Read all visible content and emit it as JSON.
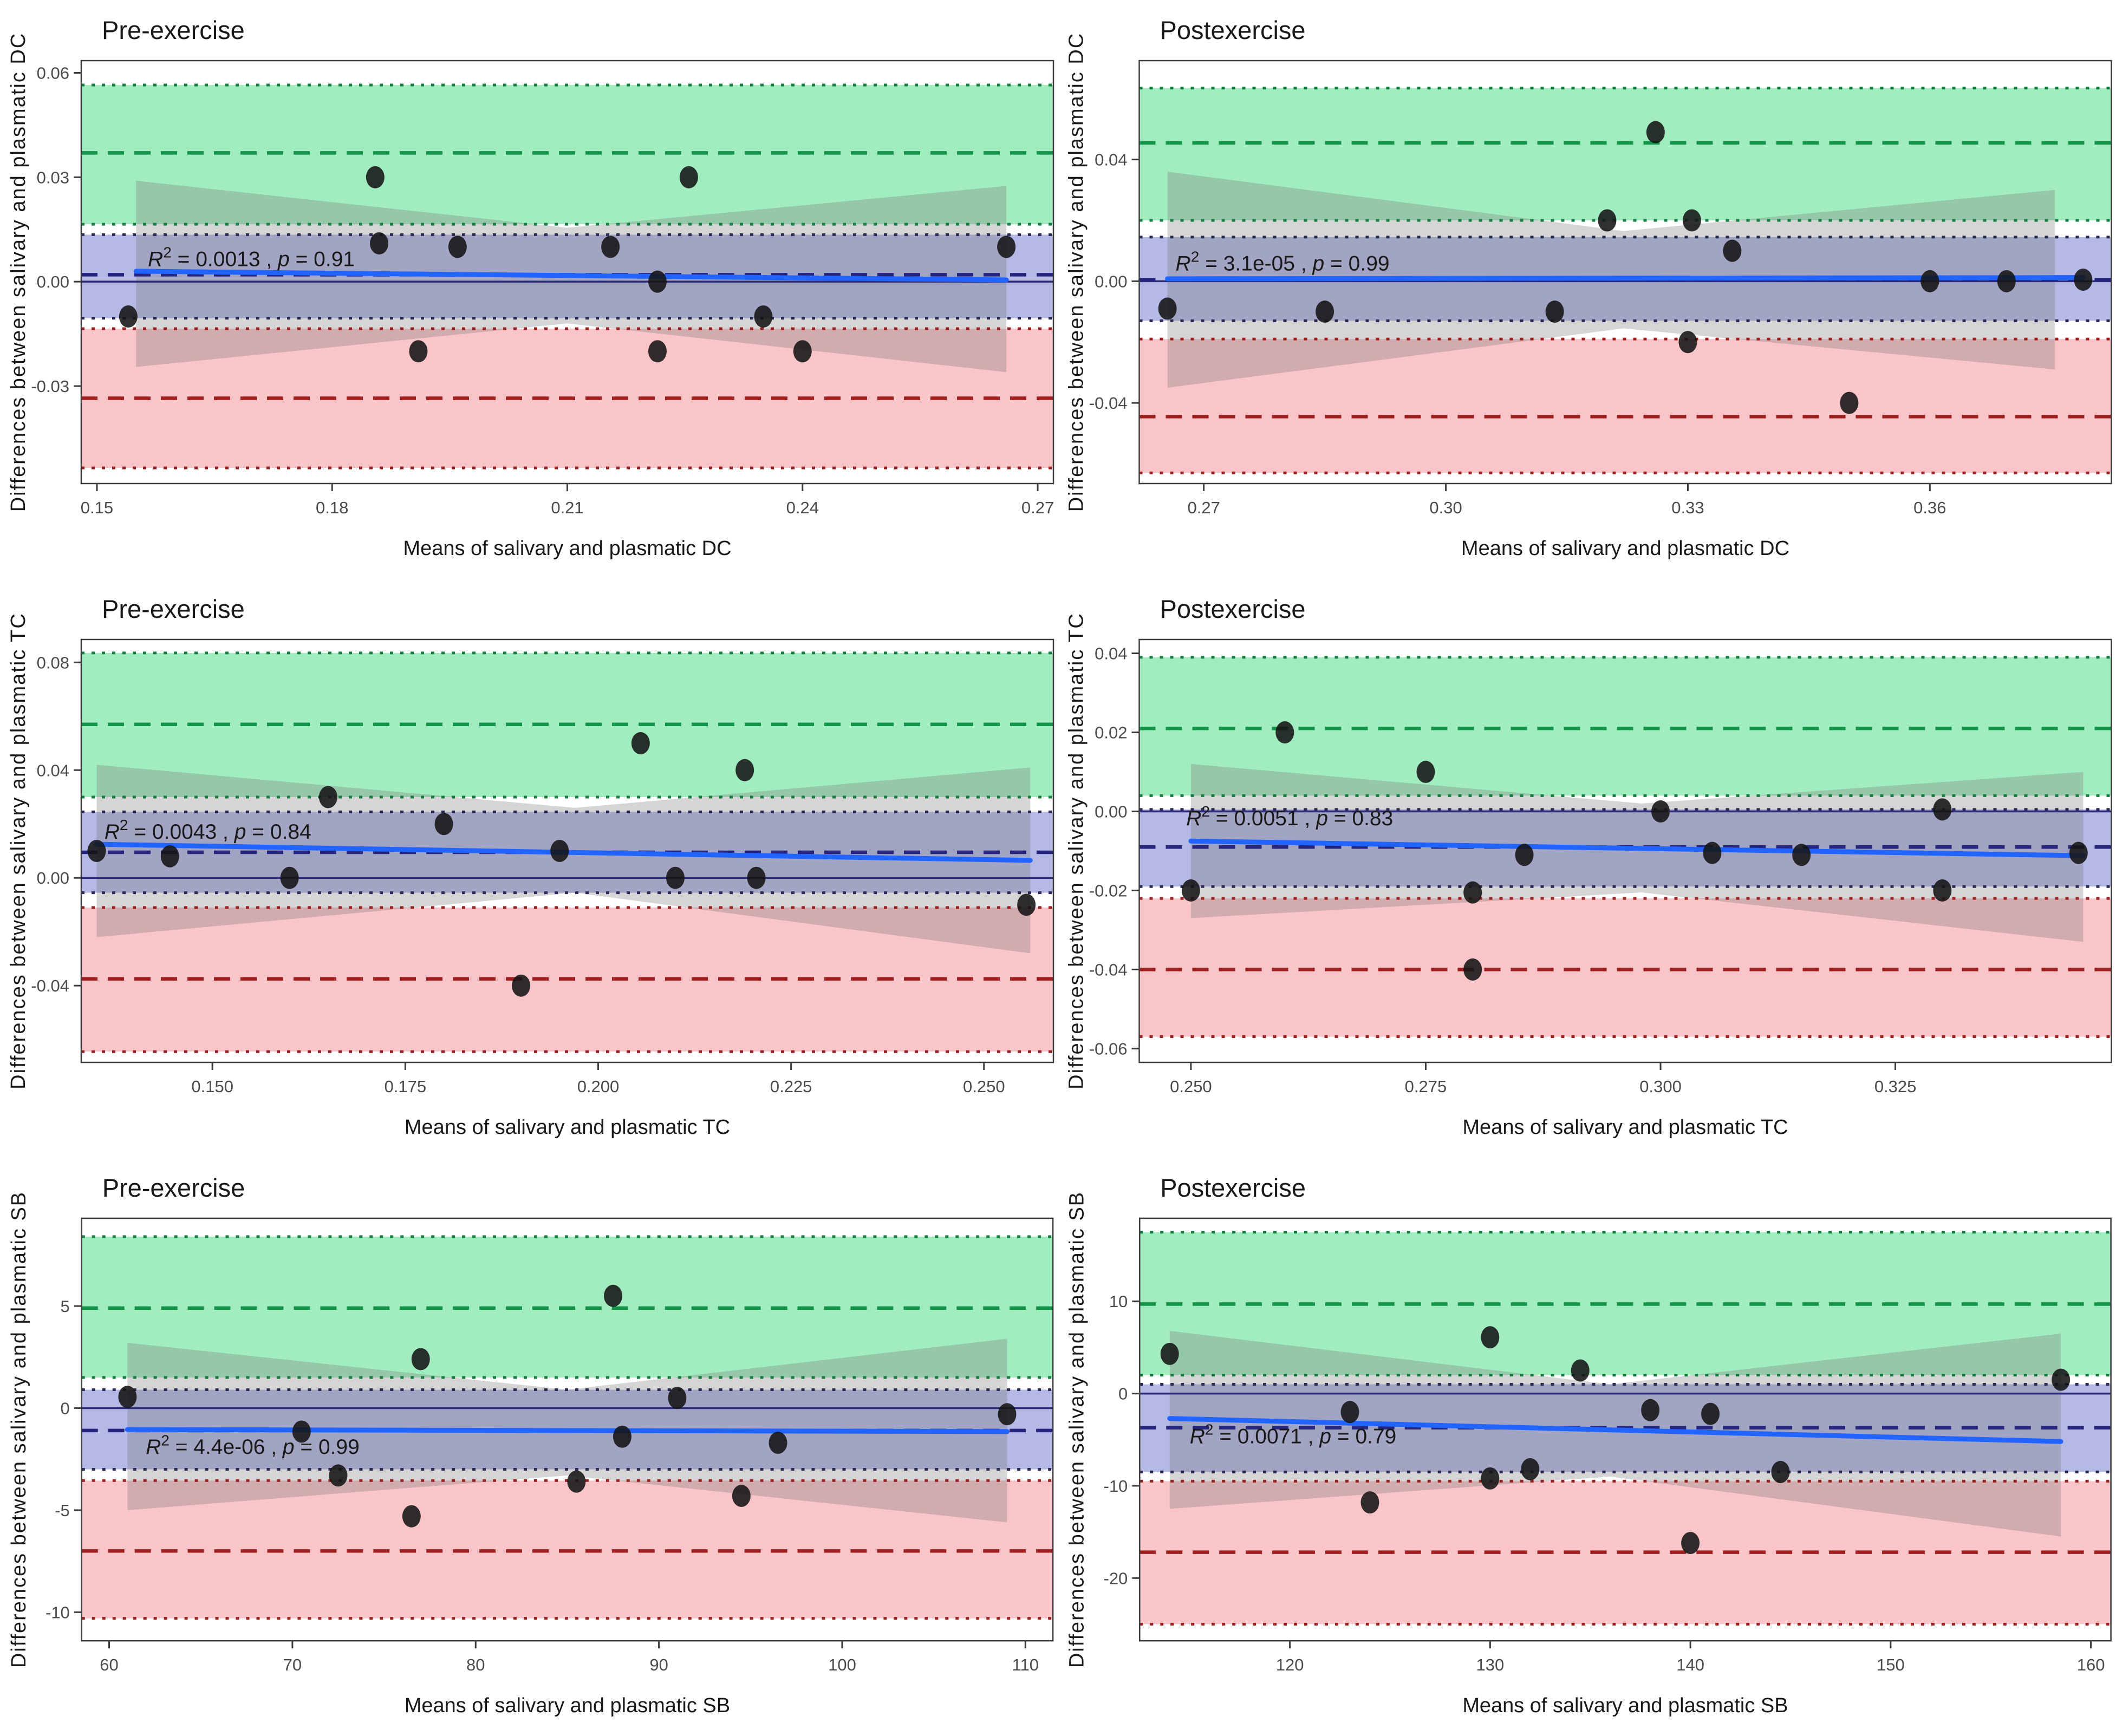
{
  "figure": {
    "kind": "bland-altman-grid",
    "rows": 3,
    "cols": 2
  },
  "colors": {
    "band_green": "#a2edc0",
    "band_blue": "#b5b9e6",
    "band_red": "#fac5c9",
    "ribbon_gray": "rgba(115,115,115,0.30)",
    "green_dashed": "#14944a",
    "green_dotted": "#157d40",
    "navy_dashed": "#25257d",
    "navy_dotted": "#2a2a55",
    "red_dashed": "#a01f1f",
    "red_dotted": "#9c2020",
    "zero_line": "#2b2b77",
    "regression": "#2264ff",
    "point": "#151515",
    "border": "#3c3c3c",
    "tick_text": "#4b4b4b",
    "text": "#191919"
  },
  "chart_data": [
    {
      "id": "pre-dc",
      "type": "scatter",
      "title": "Pre-exercise",
      "xlabel": "Means of salivary and plasmatic DC",
      "ylabel": "Differences between salivary and plasmatic DC",
      "xlim": [
        0.148,
        0.272
      ],
      "ylim": [
        -0.058,
        0.0635
      ],
      "xticks": {
        "values": [
          0.15,
          0.18,
          0.21,
          0.24,
          0.27
        ],
        "labels": [
          "0.15",
          "0.18",
          "0.21",
          "0.24",
          "0.27"
        ]
      },
      "yticks": {
        "values": [
          0.06,
          0.03,
          0.0,
          -0.03
        ],
        "labels": [
          "0.06",
          "0.03",
          "0.00",
          "-0.03"
        ]
      },
      "upper_loa": {
        "value": 0.037,
        "ci": [
          0.0165,
          0.0565
        ]
      },
      "bias": {
        "value": 0.002,
        "ci": [
          -0.0105,
          0.0135
        ]
      },
      "lower_loa": {
        "value": -0.0335,
        "ci": [
          -0.0535,
          -0.0135
        ]
      },
      "zero_line": 0,
      "regression": {
        "x": [
          0.155,
          0.266
        ],
        "y": [
          0.003,
          0.0005
        ],
        "r2": "0.0013",
        "p": "0.91"
      },
      "annotation": {
        "x": 0.1565,
        "y": 0.0045
      },
      "ci_ribbon": {
        "x": [
          0.155,
          0.21,
          0.266
        ],
        "top": [
          0.029,
          0.0155,
          0.0275
        ],
        "bottom": [
          -0.0245,
          -0.012,
          -0.026
        ]
      },
      "points": [
        [
          0.154,
          -0.01
        ],
        [
          0.1855,
          0.03
        ],
        [
          0.186,
          0.011
        ],
        [
          0.196,
          0.01
        ],
        [
          0.191,
          -0.02
        ],
        [
          0.2155,
          0.01
        ],
        [
          0.2215,
          0.0
        ],
        [
          0.2215,
          -0.02
        ],
        [
          0.2255,
          0.03
        ],
        [
          0.235,
          -0.01
        ],
        [
          0.24,
          -0.02
        ],
        [
          0.266,
          0.01
        ]
      ]
    },
    {
      "id": "post-dc",
      "type": "scatter",
      "title": "Postexercise",
      "xlabel": "Means of salivary and plasmatic DC",
      "ylabel": "Differences between salivary and plasmatic DC",
      "xlim": [
        0.262,
        0.3825
      ],
      "ylim": [
        -0.0665,
        0.0725
      ],
      "xticks": {
        "values": [
          0.27,
          0.3,
          0.33,
          0.36
        ],
        "labels": [
          "0.27",
          "0.30",
          "0.33",
          "0.36"
        ]
      },
      "yticks": {
        "values": [
          0.04,
          0.0,
          -0.04
        ],
        "labels": [
          "0.04",
          "0.00",
          "-0.04"
        ]
      },
      "upper_loa": {
        "value": 0.0455,
        "ci": [
          0.02,
          0.0635
        ]
      },
      "bias": {
        "value": 0.0005,
        "ci": [
          -0.013,
          0.0145
        ]
      },
      "lower_loa": {
        "value": -0.0445,
        "ci": [
          -0.063,
          -0.019
        ]
      },
      "zero_line": 0,
      "regression": {
        "x": [
          0.2655,
          0.379
        ],
        "y": [
          0.0008,
          0.0012
        ],
        "r2": "3.1e-05",
        "p": "0.99"
      },
      "annotation": {
        "x": 0.2665,
        "y": 0.0035
      },
      "ci_ribbon": {
        "x": [
          0.2655,
          0.322,
          0.3755
        ],
        "top": [
          0.036,
          0.0165,
          0.03
        ],
        "bottom": [
          -0.035,
          -0.0155,
          -0.029
        ]
      },
      "points": [
        [
          0.2655,
          -0.009
        ],
        [
          0.285,
          -0.01
        ],
        [
          0.3135,
          -0.01
        ],
        [
          0.32,
          0.02
        ],
        [
          0.326,
          0.049
        ],
        [
          0.3305,
          0.02
        ],
        [
          0.33,
          -0.02
        ],
        [
          0.3355,
          0.01
        ],
        [
          0.35,
          -0.04
        ],
        [
          0.36,
          0.0
        ],
        [
          0.3695,
          0.0
        ],
        [
          0.379,
          0.0005
        ]
      ]
    },
    {
      "id": "pre-tc",
      "type": "scatter",
      "title": "Pre-exercise",
      "xlabel": "Means of salivary and plasmatic TC",
      "ylabel": "Differences between salivary and plasmatic TC",
      "xlim": [
        0.133,
        0.259
      ],
      "ylim": [
        -0.0685,
        0.0885
      ],
      "xticks": {
        "values": [
          0.15,
          0.175,
          0.2,
          0.225,
          0.25
        ],
        "labels": [
          "0.150",
          "0.175",
          "0.200",
          "0.225",
          "0.250"
        ]
      },
      "yticks": {
        "values": [
          0.08,
          0.04,
          0.0,
          -0.04
        ],
        "labels": [
          "0.08",
          "0.04",
          "0.00",
          "-0.04"
        ]
      },
      "upper_loa": {
        "value": 0.057,
        "ci": [
          0.03,
          0.0835
        ]
      },
      "bias": {
        "value": 0.0095,
        "ci": [
          -0.0055,
          0.0245
        ]
      },
      "lower_loa": {
        "value": -0.0375,
        "ci": [
          -0.0645,
          -0.011
        ]
      },
      "zero_line": 0,
      "regression": {
        "x": [
          0.135,
          0.256
        ],
        "y": [
          0.0125,
          0.0065
        ],
        "r2": "0.0043",
        "p": "0.84"
      },
      "annotation": {
        "x": 0.136,
        "y": 0.0145
      },
      "ci_ribbon": {
        "x": [
          0.135,
          0.197,
          0.256
        ],
        "top": [
          0.042,
          0.026,
          0.041
        ],
        "bottom": [
          -0.022,
          -0.0055,
          -0.028
        ]
      },
      "points": [
        [
          0.135,
          0.01
        ],
        [
          0.1445,
          0.008
        ],
        [
          0.16,
          0.0
        ],
        [
          0.165,
          0.03
        ],
        [
          0.18,
          0.02
        ],
        [
          0.19,
          -0.04
        ],
        [
          0.195,
          0.01
        ],
        [
          0.2055,
          0.05
        ],
        [
          0.21,
          0.0
        ],
        [
          0.219,
          0.04
        ],
        [
          0.2205,
          0.0
        ],
        [
          0.2555,
          -0.01
        ]
      ]
    },
    {
      "id": "post-tc",
      "type": "scatter",
      "title": "Postexercise",
      "xlabel": "Means of salivary and plasmatic TC",
      "ylabel": "Differences between salivary and plasmatic TC",
      "xlim": [
        0.2445,
        0.348
      ],
      "ylim": [
        -0.0635,
        0.0435
      ],
      "xticks": {
        "values": [
          0.25,
          0.275,
          0.3,
          0.325
        ],
        "labels": [
          "0.250",
          "0.275",
          "0.300",
          "0.325"
        ]
      },
      "yticks": {
        "values": [
          0.04,
          0.02,
          0.0,
          -0.02,
          -0.04,
          -0.06
        ],
        "labels": [
          "0.04",
          "0.02",
          "0.00",
          "-0.02",
          "-0.04",
          "-0.06"
        ]
      },
      "upper_loa": {
        "value": 0.021,
        "ci": [
          0.004,
          0.039
        ]
      },
      "bias": {
        "value": -0.009,
        "ci": [
          -0.019,
          0.0005
        ]
      },
      "lower_loa": {
        "value": -0.04,
        "ci": [
          -0.057,
          -0.022
        ]
      },
      "zero_line": 0,
      "regression": {
        "x": [
          0.25,
          0.345
        ],
        "y": [
          -0.0075,
          -0.0112
        ],
        "r2": "0.0051",
        "p": "0.83"
      },
      "annotation": {
        "x": 0.2495,
        "y": -0.0035
      },
      "ci_ribbon": {
        "x": [
          0.25,
          0.298,
          0.345
        ],
        "top": [
          0.012,
          0.002,
          0.01
        ],
        "bottom": [
          -0.027,
          -0.0205,
          -0.033
        ]
      },
      "points": [
        [
          0.25,
          -0.02
        ],
        [
          0.26,
          0.02
        ],
        [
          0.275,
          0.01
        ],
        [
          0.28,
          -0.0205
        ],
        [
          0.28,
          -0.04
        ],
        [
          0.2855,
          -0.011
        ],
        [
          0.3,
          0.0
        ],
        [
          0.3055,
          -0.0105
        ],
        [
          0.315,
          -0.011
        ],
        [
          0.33,
          0.0005
        ],
        [
          0.33,
          -0.02
        ],
        [
          0.3445,
          -0.0105
        ]
      ]
    },
    {
      "id": "pre-sb",
      "type": "scatter",
      "title": "Pre-exercise",
      "xlabel": "Means of salivary and plasmatic SB",
      "ylabel": "Differences between salivary and plasmatic SB",
      "xlim": [
        58.5,
        111.5
      ],
      "ylim": [
        -11.4,
        9.3
      ],
      "xticks": {
        "values": [
          60,
          70,
          80,
          90,
          100,
          110
        ],
        "labels": [
          "60",
          "70",
          "80",
          "90",
          "100",
          "110"
        ]
      },
      "yticks": {
        "values": [
          5,
          0,
          -5,
          -10
        ],
        "labels": [
          "5",
          "0",
          "-5",
          "-10"
        ]
      },
      "upper_loa": {
        "value": 4.9,
        "ci": [
          1.5,
          8.4
        ]
      },
      "bias": {
        "value": -1.1,
        "ci": [
          -3.0,
          0.9
        ]
      },
      "lower_loa": {
        "value": -7.0,
        "ci": [
          -10.3,
          -3.55
        ]
      },
      "zero_line": 0,
      "regression": {
        "x": [
          61,
          109
        ],
        "y": [
          -1.05,
          -1.15
        ],
        "r2": "4.4e-06",
        "p": "0.99"
      },
      "annotation": {
        "x": 62,
        "y": -2.25
      },
      "ci_ribbon": {
        "x": [
          61,
          85,
          109
        ],
        "top": [
          3.2,
          0.9,
          3.4
        ],
        "bottom": [
          -5.0,
          -3.3,
          -5.6
        ]
      },
      "points": [
        [
          61,
          0.55
        ],
        [
          70.5,
          -1.15
        ],
        [
          72.5,
          -3.3
        ],
        [
          76.5,
          -5.3
        ],
        [
          77,
          2.4
        ],
        [
          85.5,
          -3.6
        ],
        [
          87.5,
          5.5
        ],
        [
          88,
          -1.4
        ],
        [
          91,
          0.5
        ],
        [
          94.5,
          -4.3
        ],
        [
          96.5,
          -1.7
        ],
        [
          109,
          -0.3
        ]
      ]
    },
    {
      "id": "post-sb",
      "type": "scatter",
      "title": "Postexercise",
      "xlabel": "Means of salivary and plasmatic SB",
      "ylabel": "Differences between salivary and plasmatic SB",
      "xlim": [
        112.5,
        161
      ],
      "ylim": [
        -26.8,
        19.0
      ],
      "xticks": {
        "values": [
          120,
          130,
          140,
          150,
          160
        ],
        "labels": [
          "120",
          "130",
          "140",
          "150",
          "160"
        ]
      },
      "yticks": {
        "values": [
          10,
          0,
          -10,
          -20
        ],
        "labels": [
          "10",
          "0",
          "-10",
          "-20"
        ]
      },
      "upper_loa": {
        "value": 9.7,
        "ci": [
          2.0,
          17.5
        ]
      },
      "bias": {
        "value": -3.7,
        "ci": [
          -8.5,
          1.0
        ]
      },
      "lower_loa": {
        "value": -17.2,
        "ci": [
          -25.0,
          -9.5
        ]
      },
      "zero_line": 0,
      "regression": {
        "x": [
          114,
          158.5
        ],
        "y": [
          -2.7,
          -5.2
        ],
        "r2": "0.0071",
        "p": "0.79"
      },
      "annotation": {
        "x": 115,
        "y": -5.4
      },
      "ci_ribbon": {
        "x": [
          114,
          136,
          158.5
        ],
        "top": [
          6.8,
          1.0,
          6.5
        ],
        "bottom": [
          -12.5,
          -9.0,
          -15.5
        ]
      },
      "points": [
        [
          114,
          4.3
        ],
        [
          123,
          -2.0
        ],
        [
          124,
          -11.8
        ],
        [
          130,
          6.1
        ],
        [
          130,
          -9.2
        ],
        [
          132,
          -8.2
        ],
        [
          134.5,
          2.5
        ],
        [
          138,
          -1.8
        ],
        [
          140,
          -16.2
        ],
        [
          141,
          -2.2
        ],
        [
          144.5,
          -8.5
        ],
        [
          158.5,
          1.5
        ]
      ]
    }
  ]
}
